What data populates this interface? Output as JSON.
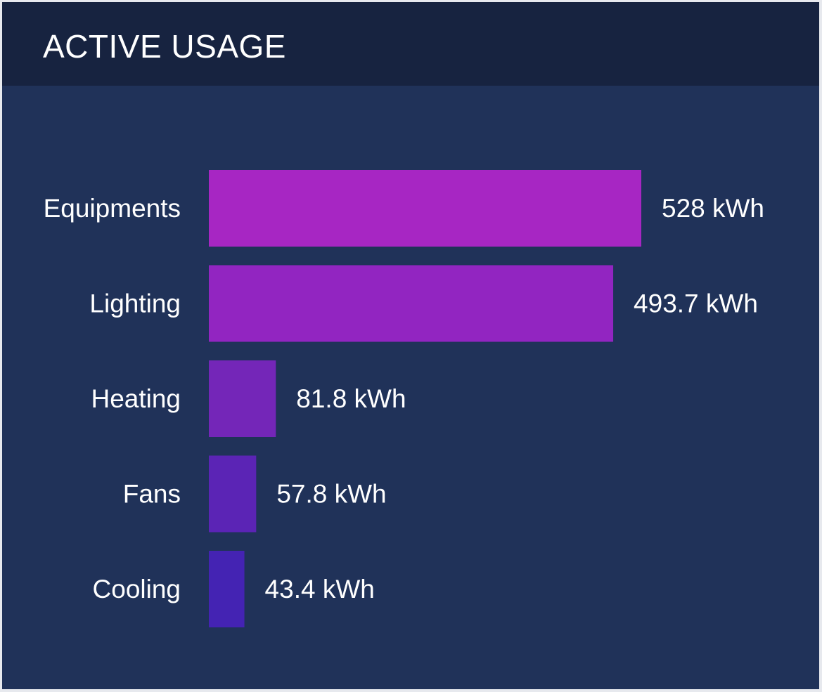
{
  "header": {
    "title": "ACTIVE USAGE"
  },
  "chart_data": {
    "type": "bar",
    "orientation": "horizontal",
    "categories": [
      "Equipments",
      "Lighting",
      "Heating",
      "Fans",
      "Cooling"
    ],
    "values": [
      528,
      493.7,
      81.8,
      57.8,
      43.4
    ],
    "value_labels": [
      "528 kWh",
      "493.7 kWh",
      "81.8 kWh",
      "57.8 kWh",
      "43.4 kWh"
    ],
    "unit": "kWh",
    "bar_colors": [
      "#a726c3",
      "#9225c1",
      "#7426b8",
      "#5b24b5",
      "#4423b3"
    ],
    "title": "",
    "xlabel": "",
    "ylabel": "",
    "xlim": [
      0,
      528
    ],
    "grid": false,
    "legend": "none"
  },
  "colors": {
    "background": "#203259",
    "header": "#172340",
    "text": "#ffffff",
    "frame": "#e7e9ee"
  }
}
